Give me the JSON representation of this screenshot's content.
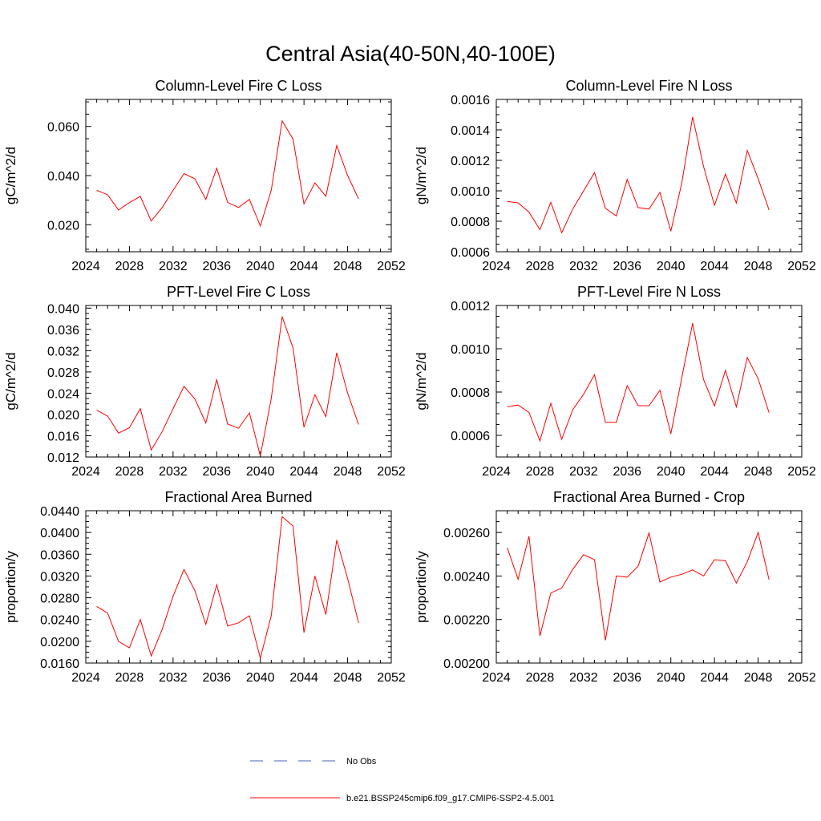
{
  "title": "Central Asia(40-50N,40-100E)",
  "colors": {
    "model": "#ff0000",
    "obs": "#4a5fc1",
    "frame": "#000000"
  },
  "legend": [
    {
      "label": "No Obs",
      "style": "dashed",
      "color": "#4a5fc1"
    },
    {
      "label": "b.e21.BSSP245cmip6.f09_g17.CMIP6-SSP2-4.5.001",
      "style": "solid",
      "color": "#ff0000"
    }
  ],
  "chart_data": [
    {
      "type": "line",
      "title": "Column-Level Fire C Loss",
      "ylabel": "gC/m^2/d",
      "xlim": [
        2024,
        2052
      ],
      "ylim": [
        0.009,
        0.071
      ],
      "xticks": [
        "2024",
        "2028",
        "2032",
        "2036",
        "2040",
        "2044",
        "2048",
        "2052"
      ],
      "yticks": [
        "0.020",
        "0.040",
        "0.060"
      ],
      "x": [
        2025,
        2026,
        2027,
        2028,
        2029,
        2030,
        2031,
        2032,
        2033,
        2034,
        2035,
        2036,
        2037,
        2038,
        2039,
        2040,
        2041,
        2042,
        2043,
        2044,
        2045,
        2046,
        2047,
        2048,
        2049
      ],
      "series": [
        {
          "values": [
            0.034,
            0.0322,
            0.026,
            0.029,
            0.0315,
            0.0215,
            0.027,
            0.034,
            0.0408,
            0.0387,
            0.0303,
            0.043,
            0.0291,
            0.027,
            0.0303,
            0.0195,
            0.034,
            0.0623,
            0.0548,
            0.0285,
            0.037,
            0.0316,
            0.0522,
            0.04,
            0.0305
          ]
        }
      ]
    },
    {
      "type": "line",
      "title": "Column-Level Fire N Loss",
      "ylabel": "gN/m^2/d",
      "xlim": [
        2024,
        2052
      ],
      "ylim": [
        0.0006,
        0.0016
      ],
      "xticks": [
        "2024",
        "2028",
        "2032",
        "2036",
        "2040",
        "2044",
        "2048",
        "2052"
      ],
      "yticks": [
        "0.0006",
        "0.0008",
        "0.0010",
        "0.0012",
        "0.0014",
        "0.0016"
      ],
      "x": [
        2025,
        2026,
        2027,
        2028,
        2029,
        2030,
        2031,
        2032,
        2033,
        2034,
        2035,
        2036,
        2037,
        2038,
        2039,
        2040,
        2041,
        2042,
        2043,
        2044,
        2045,
        2046,
        2047,
        2048,
        2049
      ],
      "series": [
        {
          "values": [
            0.00093,
            0.000921,
            0.00086,
            0.000745,
            0.000925,
            0.000725,
            0.00088,
            0.001,
            0.00112,
            0.000885,
            0.000835,
            0.001075,
            0.00089,
            0.00088,
            0.00099,
            0.000735,
            0.00105,
            0.001485,
            0.00116,
            0.000905,
            0.00111,
            0.00092,
            0.001265,
            0.00108,
            0.000875
          ]
        }
      ]
    },
    {
      "type": "line",
      "title": "PFT-Level Fire C Loss",
      "ylabel": "gC/m^2/d",
      "xlim": [
        2024,
        2052
      ],
      "ylim": [
        0.012,
        0.0405
      ],
      "xticks": [
        "2024",
        "2028",
        "2032",
        "2036",
        "2040",
        "2044",
        "2048",
        "2052"
      ],
      "yticks": [
        "0.012",
        "0.016",
        "0.020",
        "0.024",
        "0.028",
        "0.032",
        "0.036",
        "0.040"
      ],
      "x": [
        2025,
        2026,
        2027,
        2028,
        2029,
        2030,
        2031,
        2032,
        2033,
        2034,
        2035,
        2036,
        2037,
        2038,
        2039,
        2040,
        2041,
        2042,
        2043,
        2044,
        2045,
        2046,
        2047,
        2048,
        2049
      ],
      "series": [
        {
          "values": [
            0.0208,
            0.0197,
            0.0165,
            0.0175,
            0.0211,
            0.0133,
            0.0168,
            0.0211,
            0.0253,
            0.0229,
            0.0184,
            0.0266,
            0.0182,
            0.0174,
            0.0203,
            0.0122,
            0.023,
            0.0384,
            0.0325,
            0.0176,
            0.0237,
            0.0196,
            0.0316,
            0.024,
            0.0181
          ]
        }
      ]
    },
    {
      "type": "line",
      "title": "PFT-Level Fire N Loss",
      "ylabel": "gN/m^2/d",
      "xlim": [
        2024,
        2052
      ],
      "ylim": [
        0.0005,
        0.0012
      ],
      "xticks": [
        "2024",
        "2028",
        "2032",
        "2036",
        "2040",
        "2044",
        "2048",
        "2052"
      ],
      "yticks": [
        "0.0006",
        "0.0008",
        "0.0010",
        "0.0012"
      ],
      "x": [
        2025,
        2026,
        2027,
        2028,
        2029,
        2030,
        2031,
        2032,
        2033,
        2034,
        2035,
        2036,
        2037,
        2038,
        2039,
        2040,
        2041,
        2042,
        2043,
        2044,
        2045,
        2046,
        2047,
        2048,
        2049
      ],
      "series": [
        {
          "values": [
            0.000732,
            0.00074,
            0.000706,
            0.000575,
            0.000748,
            0.000582,
            0.000718,
            0.00079,
            0.00088,
            0.00066,
            0.00066,
            0.00083,
            0.000737,
            0.000737,
            0.000808,
            0.000607,
            0.000865,
            0.001118,
            0.000858,
            0.000736,
            0.0009,
            0.000732,
            0.00096,
            0.000862,
            0.000705
          ]
        }
      ]
    },
    {
      "type": "line",
      "title": "Fractional Area Burned",
      "ylabel": "proportion/y",
      "xlim": [
        2024,
        2052
      ],
      "ylim": [
        0.016,
        0.044
      ],
      "xticks": [
        "2024",
        "2028",
        "2032",
        "2036",
        "2040",
        "2044",
        "2048",
        "2052"
      ],
      "yticks": [
        "0.0160",
        "0.0200",
        "0.0240",
        "0.0280",
        "0.0320",
        "0.0360",
        "0.0400",
        "0.0440"
      ],
      "x": [
        2025,
        2026,
        2027,
        2028,
        2029,
        2030,
        2031,
        2032,
        2033,
        2034,
        2035,
        2036,
        2037,
        2038,
        2039,
        2040,
        2041,
        2042,
        2043,
        2044,
        2045,
        2046,
        2047,
        2048,
        2049
      ],
      "series": [
        {
          "values": [
            0.0264,
            0.0252,
            0.02,
            0.0188,
            0.024,
            0.0173,
            0.0222,
            0.0283,
            0.0332,
            0.0293,
            0.0231,
            0.0304,
            0.0228,
            0.0234,
            0.0247,
            0.0169,
            0.0247,
            0.0429,
            0.0412,
            0.0216,
            0.032,
            0.0249,
            0.0386,
            0.0315,
            0.0234
          ]
        }
      ]
    },
    {
      "type": "line",
      "title": "Fractional Area Burned - Crop",
      "ylabel": "proportion/y",
      "xlim": [
        2024,
        2052
      ],
      "ylim": [
        0.002,
        0.0027
      ],
      "xticks": [
        "2024",
        "2028",
        "2032",
        "2036",
        "2040",
        "2044",
        "2048",
        "2052"
      ],
      "yticks": [
        "0.00200",
        "0.00220",
        "0.00240",
        "0.00260"
      ],
      "x": [
        2025,
        2026,
        2027,
        2028,
        2029,
        2030,
        2031,
        2032,
        2033,
        2034,
        2035,
        2036,
        2037,
        2038,
        2039,
        2040,
        2041,
        2042,
        2043,
        2044,
        2045,
        2046,
        2047,
        2048,
        2049
      ],
      "series": [
        {
          "values": [
            0.00253,
            0.002385,
            0.002583,
            0.002125,
            0.002322,
            0.002345,
            0.00243,
            0.002498,
            0.002475,
            0.002105,
            0.0024,
            0.002395,
            0.002445,
            0.002598,
            0.002372,
            0.002395,
            0.002408,
            0.002428,
            0.0024,
            0.002475,
            0.00247,
            0.002368,
            0.002465,
            0.0026,
            0.002383
          ]
        }
      ]
    }
  ]
}
